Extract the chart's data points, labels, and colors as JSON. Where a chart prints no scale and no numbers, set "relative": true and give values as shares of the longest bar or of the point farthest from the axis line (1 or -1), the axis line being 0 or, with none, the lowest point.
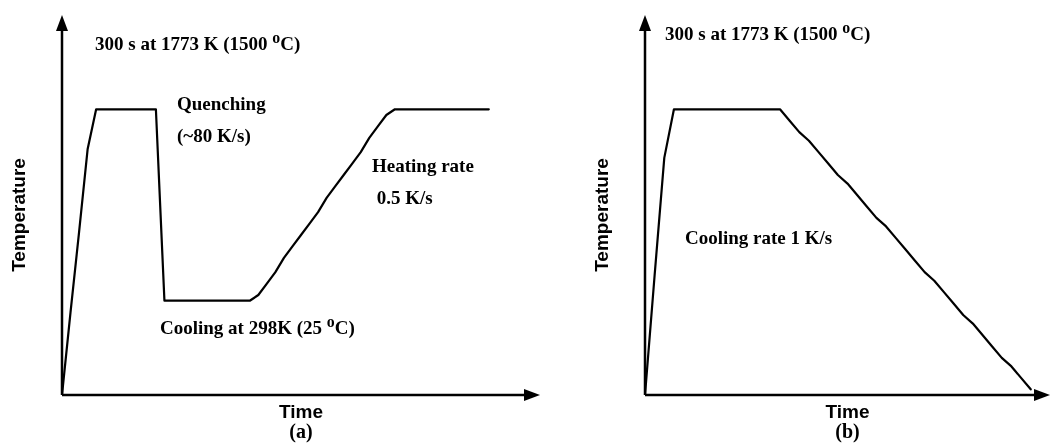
{
  "chart_data": [
    {
      "type": "line",
      "title": "(a)",
      "xlabel": "Time",
      "ylabel": "Temperature",
      "relative": true,
      "categories": [
        null,
        null,
        null,
        null,
        null,
        null,
        null,
        null,
        null,
        null,
        null,
        null,
        null,
        null,
        null,
        null,
        null,
        null,
        null,
        null,
        null,
        null,
        null,
        null,
        null,
        null,
        null,
        null,
        null,
        null,
        null,
        null,
        null,
        null,
        null,
        null,
        null,
        null,
        null,
        null,
        null,
        null,
        null,
        null,
        null,
        null,
        null,
        null,
        null,
        null,
        null
      ],
      "series": [
        {
          "color": "#000000",
          "values": [
            0,
            0.29,
            0.57,
            0.86,
            1,
            1,
            1,
            1,
            1,
            1,
            1,
            1,
            0.33,
            0.33,
            0.33,
            0.33,
            0.33,
            0.33,
            0.33,
            0.33,
            0.33,
            0.33,
            0.33,
            0.35,
            0.39,
            0.43,
            0.48,
            0.52,
            0.56,
            0.6,
            0.64,
            0.69,
            0.73,
            0.77,
            0.81,
            0.85,
            0.9,
            0.94,
            0.98,
            1,
            1,
            1,
            1,
            1,
            1,
            1,
            1,
            1,
            1,
            1,
            1
          ]
        }
      ],
      "annotations": [
        "300 s at 1773 K (1500 $^{o}$C)",
        "Quenching\n(~80 K/s)",
        "Heating rate\n 0.5 K/s",
        "Cooling at 298K (25 $^{o}$C)"
      ]
    },
    {
      "type": "line",
      "title": "(b)",
      "xlabel": "Time",
      "ylabel": "Temperature",
      "relative": true,
      "categories": [
        null,
        null,
        null,
        null,
        null,
        null,
        null,
        null,
        null,
        null,
        null,
        null,
        null,
        null,
        null,
        null,
        null,
        null,
        null,
        null,
        null,
        null,
        null,
        null,
        null,
        null,
        null,
        null,
        null,
        null,
        null,
        null,
        null,
        null,
        null,
        null,
        null,
        null,
        null,
        null,
        null
      ],
      "series": [
        {
          "color": "#000000",
          "values": [
            0,
            0.42,
            0.83,
            1,
            1,
            1,
            1,
            1,
            1,
            1,
            1,
            1,
            1,
            1,
            1,
            0.96,
            0.92,
            0.89,
            0.85,
            0.81,
            0.77,
            0.74,
            0.7,
            0.66,
            0.62,
            0.59,
            0.55,
            0.51,
            0.47,
            0.43,
            0.4,
            0.36,
            0.32,
            0.28,
            0.25,
            0.21,
            0.17,
            0.13,
            0.1,
            0.06,
            0.02
          ]
        }
      ],
      "annotations": [
        "300 s at 1773 K (1500 $^{o}$C)",
        "Cooling rate 1 K/s"
      ]
    }
  ]
}
